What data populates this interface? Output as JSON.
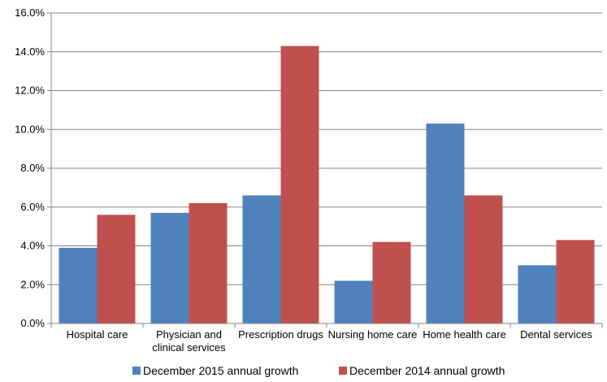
{
  "chart_data": {
    "type": "bar",
    "title": "",
    "xlabel": "",
    "ylabel": "",
    "ylim": [
      0,
      16
    ],
    "ytick_step": 2,
    "ytick_labels": [
      "0.0%",
      "2.0%",
      "4.0%",
      "6.0%",
      "8.0%",
      "10.0%",
      "12.0%",
      "14.0%",
      "16.0%"
    ],
    "categories": [
      [
        "Hospital care"
      ],
      [
        "Physician and",
        "clinical services"
      ],
      [
        "Prescription drugs"
      ],
      [
        "Nursing home care"
      ],
      [
        "Home health care"
      ],
      [
        "Dental services"
      ]
    ],
    "series": [
      {
        "name": "December 2015 annual growth",
        "color": "#4F81BD",
        "values": [
          3.9,
          5.7,
          6.6,
          2.2,
          10.3,
          3.0
        ]
      },
      {
        "name": "December 2014 annual growth",
        "color": "#C0504D",
        "values": [
          5.6,
          6.2,
          14.3,
          4.2,
          6.6,
          4.3
        ]
      }
    ],
    "grid": true,
    "legend_position": "bottom"
  }
}
